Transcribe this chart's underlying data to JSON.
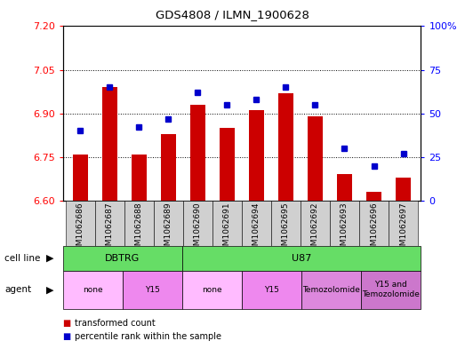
{
  "title": "GDS4808 / ILMN_1900628",
  "samples": [
    "GSM1062686",
    "GSM1062687",
    "GSM1062688",
    "GSM1062689",
    "GSM1062690",
    "GSM1062691",
    "GSM1062694",
    "GSM1062695",
    "GSM1062692",
    "GSM1062693",
    "GSM1062696",
    "GSM1062697"
  ],
  "bar_values": [
    6.76,
    6.99,
    6.76,
    6.83,
    6.93,
    6.85,
    6.91,
    6.97,
    6.89,
    6.69,
    6.63,
    6.68
  ],
  "bar_base": 6.6,
  "percentile_values": [
    40,
    65,
    42,
    47,
    62,
    55,
    58,
    65,
    55,
    30,
    20,
    27
  ],
  "ylim_left": [
    6.6,
    7.2
  ],
  "ylim_right": [
    0,
    100
  ],
  "yticks_left": [
    6.6,
    6.75,
    6.9,
    7.05,
    7.2
  ],
  "yticks_right": [
    0,
    25,
    50,
    75,
    100
  ],
  "bar_color": "#cc0000",
  "dot_color": "#0000cc",
  "cell_line_color": "#66dd66",
  "cell_line_groups": [
    {
      "label": "DBTRG",
      "start": 0,
      "end": 3
    },
    {
      "label": "U87",
      "start": 4,
      "end": 11
    }
  ],
  "agent_groups": [
    {
      "label": "none",
      "start": 0,
      "end": 1,
      "color": "#ffbbff"
    },
    {
      "label": "Y15",
      "start": 2,
      "end": 3,
      "color": "#ee88ee"
    },
    {
      "label": "none",
      "start": 4,
      "end": 5,
      "color": "#ffbbff"
    },
    {
      "label": "Y15",
      "start": 6,
      "end": 7,
      "color": "#ee88ee"
    },
    {
      "label": "Temozolomide",
      "start": 8,
      "end": 9,
      "color": "#dd88dd"
    },
    {
      "label": "Y15 and\nTemozolomide",
      "start": 10,
      "end": 11,
      "color": "#cc77cc"
    }
  ]
}
